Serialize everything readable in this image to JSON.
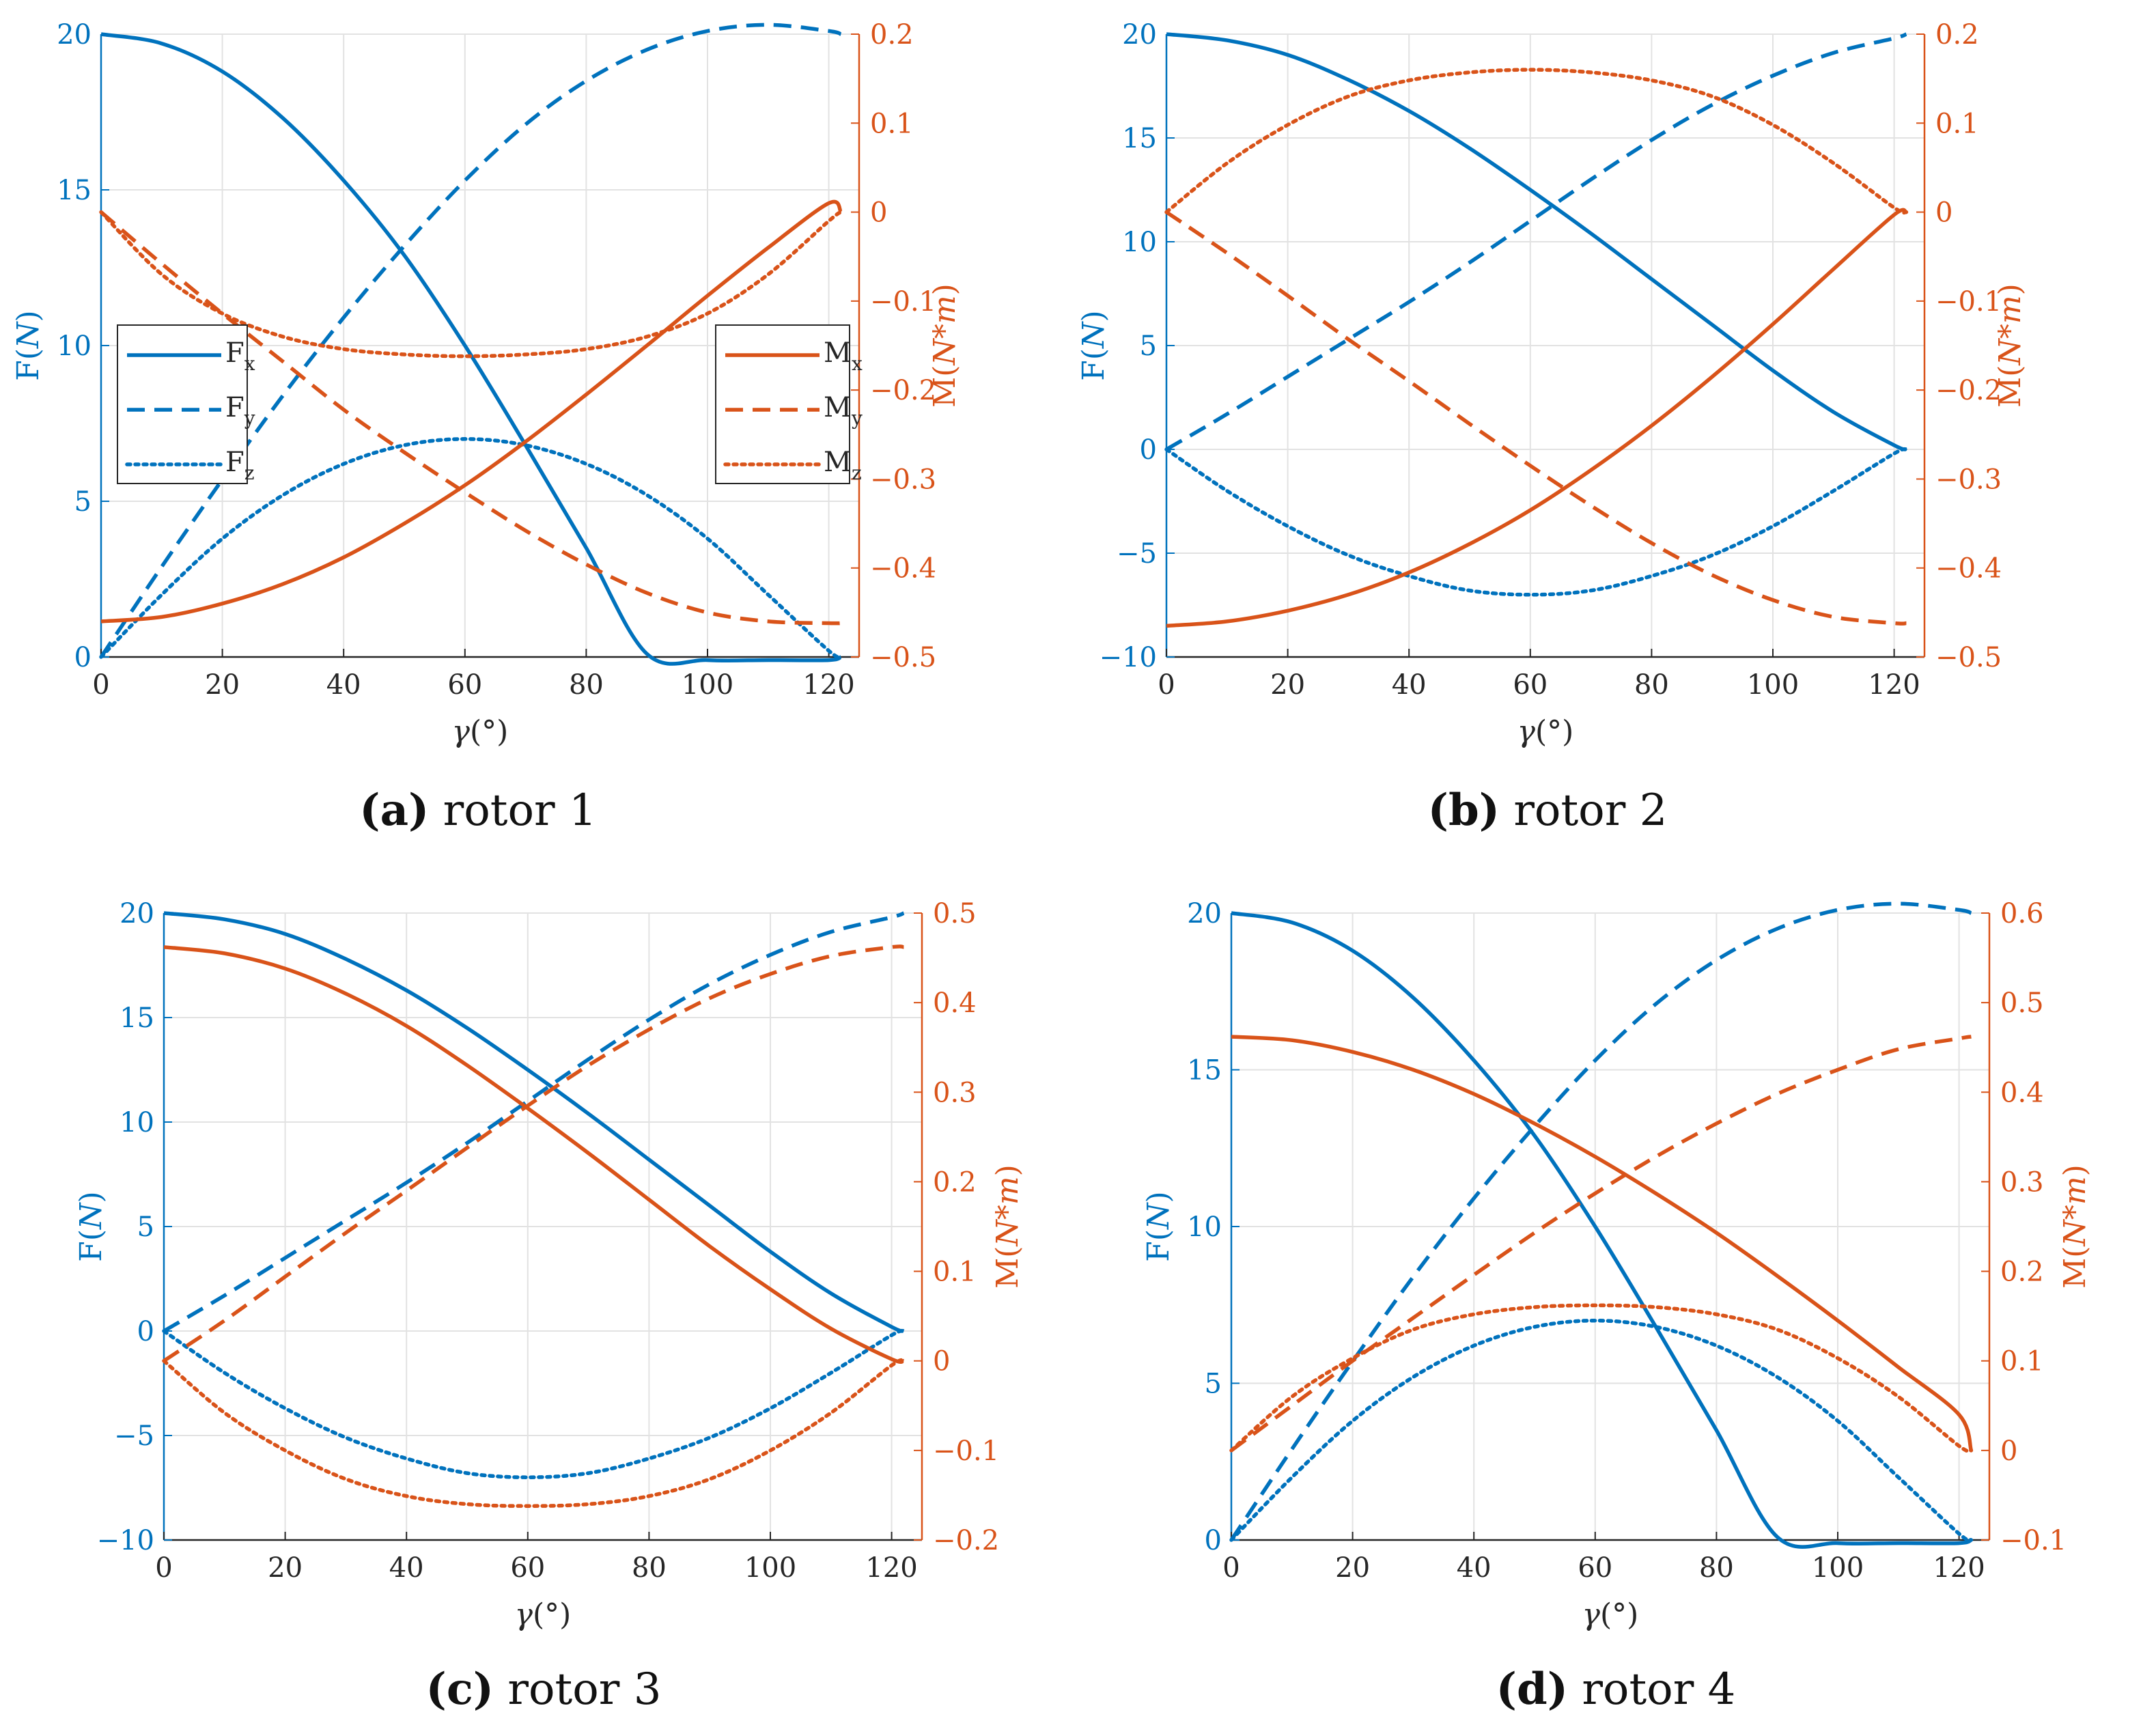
{
  "colors": {
    "force": "#0072BD",
    "moment": "#D95319",
    "grid": "#e2e2e2",
    "axis_bottom": "#262626"
  },
  "shared": {
    "xlabel": "γ(°)",
    "force_axis_label": "F(N)",
    "moment_axis_label": "M(N*m)",
    "xlim": [
      0,
      125
    ],
    "xticks": [
      0,
      20,
      40,
      60,
      80,
      100,
      120
    ]
  },
  "chart_data": [
    {
      "type": "line",
      "panel": "a",
      "caption_letter": "(a)",
      "caption_text": " rotor 1",
      "x": [
        0,
        10,
        20,
        30,
        40,
        50,
        60,
        70,
        80,
        90,
        100,
        110,
        120,
        122
      ],
      "ylim_left": [
        0,
        20
      ],
      "yticks_left": [
        0,
        5,
        10,
        15,
        20
      ],
      "ylim_right": [
        -0.5,
        0.2
      ],
      "yticks_right": [
        -0.5,
        -0.4,
        -0.3,
        -0.2,
        -0.1,
        0,
        0.1,
        0.2
      ],
      "yticklabels_right": [
        "−0.5",
        "−0.4",
        "−0.3",
        "−0.2",
        "−0.1",
        "0",
        "0.1",
        "0.2"
      ],
      "series": [
        {
          "name": "Fx",
          "axis": "left",
          "style": "solid",
          "values": [
            20,
            19.7,
            18.8,
            17.3,
            15.3,
            12.9,
            10.0,
            6.8,
            3.5,
            0.1,
            -0.1,
            -0.1,
            -0.1,
            0
          ]
        },
        {
          "name": "Fy",
          "axis": "left",
          "style": "dashed",
          "values": [
            0,
            2.9,
            5.7,
            8.4,
            10.9,
            13.2,
            15.3,
            17.1,
            18.5,
            19.5,
            20.1,
            20.3,
            20.1,
            20
          ]
        },
        {
          "name": "Fz",
          "axis": "left",
          "style": "dotted",
          "values": [
            0,
            2.0,
            3.8,
            5.2,
            6.2,
            6.8,
            7.0,
            6.8,
            6.2,
            5.2,
            3.8,
            2.0,
            0.2,
            0
          ]
        },
        {
          "name": "Mx",
          "axis": "right",
          "style": "solid",
          "values": [
            -0.46,
            -0.455,
            -0.44,
            -0.418,
            -0.388,
            -0.35,
            -0.307,
            -0.258,
            -0.205,
            -0.15,
            -0.094,
            -0.04,
            0.01,
            0
          ]
        },
        {
          "name": "My",
          "axis": "right",
          "style": "dashed",
          "values": [
            0,
            -0.058,
            -0.114,
            -0.168,
            -0.222,
            -0.27,
            -0.315,
            -0.358,
            -0.396,
            -0.428,
            -0.45,
            -0.46,
            -0.462,
            -0.462
          ]
        },
        {
          "name": "Mz",
          "axis": "right",
          "style": "dotted",
          "values": [
            0,
            -0.07,
            -0.114,
            -0.14,
            -0.154,
            -0.16,
            -0.162,
            -0.16,
            -0.154,
            -0.14,
            -0.114,
            -0.07,
            -0.01,
            0
          ]
        }
      ]
    },
    {
      "type": "line",
      "panel": "b",
      "caption_letter": "(b)",
      "caption_text": " rotor 2",
      "x": [
        0,
        10,
        20,
        30,
        40,
        50,
        60,
        70,
        80,
        90,
        100,
        110,
        120,
        122
      ],
      "ylim_left": [
        -10,
        20
      ],
      "yticks_left": [
        -10,
        -5,
        0,
        5,
        10,
        15,
        20
      ],
      "yticklabels_left": [
        "−10",
        "−5",
        "0",
        "5",
        "10",
        "15",
        "20"
      ],
      "ylim_right": [
        -0.5,
        0.2
      ],
      "yticks_right": [
        -0.5,
        -0.4,
        -0.3,
        -0.2,
        -0.1,
        0,
        0.1,
        0.2
      ],
      "yticklabels_right": [
        "−0.5",
        "−0.4",
        "−0.3",
        "−0.2",
        "−0.1",
        "0",
        "0.1",
        "0.2"
      ],
      "series": [
        {
          "name": "Fx",
          "axis": "left",
          "style": "solid",
          "values": [
            20,
            19.7,
            19.0,
            17.8,
            16.3,
            14.5,
            12.5,
            10.4,
            8.2,
            6.0,
            3.8,
            1.8,
            0.2,
            0
          ]
        },
        {
          "name": "Fy",
          "axis": "left",
          "style": "dashed",
          "values": [
            0,
            1.7,
            3.5,
            5.3,
            7.1,
            9.0,
            11.0,
            13.0,
            14.9,
            16.6,
            18.0,
            19.1,
            19.8,
            20
          ]
        },
        {
          "name": "Fz",
          "axis": "left",
          "style": "dotted",
          "values": [
            0,
            -2.0,
            -3.7,
            -5.1,
            -6.1,
            -6.8,
            -7.0,
            -6.8,
            -6.1,
            -5.1,
            -3.7,
            -2.0,
            -0.2,
            0
          ]
        },
        {
          "name": "Mx",
          "axis": "right",
          "style": "solid",
          "values": [
            -0.465,
            -0.46,
            -0.448,
            -0.43,
            -0.405,
            -0.373,
            -0.335,
            -0.29,
            -0.24,
            -0.185,
            -0.126,
            -0.064,
            -0.003,
            0
          ]
        },
        {
          "name": "My",
          "axis": "right",
          "style": "dashed",
          "values": [
            0,
            -0.046,
            -0.094,
            -0.143,
            -0.19,
            -0.238,
            -0.285,
            -0.33,
            -0.372,
            -0.408,
            -0.436,
            -0.455,
            -0.462,
            -0.462
          ]
        },
        {
          "name": "Mz",
          "axis": "right",
          "style": "dotted",
          "values": [
            0,
            0.055,
            0.098,
            0.13,
            0.148,
            0.157,
            0.16,
            0.157,
            0.148,
            0.13,
            0.098,
            0.055,
            0.005,
            0
          ]
        }
      ]
    },
    {
      "type": "line",
      "panel": "c",
      "caption_letter": "(c)",
      "caption_text": " rotor 3",
      "x": [
        0,
        10,
        20,
        30,
        40,
        50,
        60,
        70,
        80,
        90,
        100,
        110,
        120,
        122
      ],
      "ylim_left": [
        -10,
        20
      ],
      "yticks_left": [
        -10,
        -5,
        0,
        5,
        10,
        15,
        20
      ],
      "yticklabels_left": [
        "−10",
        "−5",
        "0",
        "5",
        "10",
        "15",
        "20"
      ],
      "ylim_right": [
        -0.2,
        0.5
      ],
      "yticks_right": [
        -0.2,
        -0.1,
        0,
        0.1,
        0.2,
        0.3,
        0.4,
        0.5
      ],
      "yticklabels_right": [
        "−0.2",
        "−0.1",
        "0",
        "0.1",
        "0.2",
        "0.3",
        "0.4",
        "0.5"
      ],
      "series": [
        {
          "name": "Fx",
          "axis": "left",
          "style": "solid",
          "values": [
            20,
            19.7,
            19.0,
            17.8,
            16.3,
            14.5,
            12.5,
            10.4,
            8.2,
            6.0,
            3.8,
            1.8,
            0.2,
            0
          ]
        },
        {
          "name": "Fy",
          "axis": "left",
          "style": "dashed",
          "values": [
            0,
            1.7,
            3.5,
            5.3,
            7.1,
            9.0,
            11.0,
            13.0,
            14.9,
            16.6,
            18.0,
            19.1,
            19.8,
            20
          ]
        },
        {
          "name": "Fz",
          "axis": "left",
          "style": "dotted",
          "values": [
            0,
            -2.0,
            -3.7,
            -5.1,
            -6.1,
            -6.8,
            -7.0,
            -6.8,
            -6.1,
            -5.1,
            -3.7,
            -2.0,
            -0.2,
            0
          ]
        },
        {
          "name": "Mx",
          "axis": "right",
          "style": "solid",
          "values": [
            0.462,
            0.455,
            0.438,
            0.41,
            0.374,
            0.33,
            0.282,
            0.232,
            0.18,
            0.128,
            0.08,
            0.036,
            0.002,
            0
          ]
        },
        {
          "name": "My",
          "axis": "right",
          "style": "dashed",
          "values": [
            0,
            0.045,
            0.094,
            0.143,
            0.19,
            0.238,
            0.285,
            0.33,
            0.37,
            0.405,
            0.432,
            0.452,
            0.462,
            0.462
          ]
        },
        {
          "name": "Mz",
          "axis": "right",
          "style": "dotted",
          "values": [
            0,
            -0.058,
            -0.1,
            -0.132,
            -0.151,
            -0.16,
            -0.162,
            -0.16,
            -0.151,
            -0.132,
            -0.1,
            -0.058,
            -0.005,
            0
          ]
        }
      ]
    },
    {
      "type": "line",
      "panel": "d",
      "caption_letter": "(d)",
      "caption_text": " rotor 4",
      "x": [
        0,
        10,
        20,
        30,
        40,
        50,
        60,
        70,
        80,
        90,
        100,
        110,
        120,
        122
      ],
      "ylim_left": [
        0,
        20
      ],
      "yticks_left": [
        0,
        5,
        10,
        15,
        20
      ],
      "ylim_right": [
        -0.1,
        0.6
      ],
      "yticks_right": [
        -0.1,
        0,
        0.1,
        0.2,
        0.3,
        0.4,
        0.5,
        0.6
      ],
      "yticklabels_right": [
        "−0.1",
        "0",
        "0.1",
        "0.2",
        "0.3",
        "0.4",
        "0.5",
        "0.6"
      ],
      "series": [
        {
          "name": "Fx",
          "axis": "left",
          "style": "solid",
          "values": [
            20,
            19.7,
            18.8,
            17.3,
            15.3,
            12.9,
            10.0,
            6.8,
            3.5,
            0.1,
            -0.1,
            -0.1,
            -0.1,
            0
          ]
        },
        {
          "name": "Fy",
          "axis": "left",
          "style": "dashed",
          "values": [
            0,
            2.9,
            5.7,
            8.4,
            10.9,
            13.2,
            15.3,
            17.1,
            18.5,
            19.5,
            20.1,
            20.3,
            20.1,
            20
          ]
        },
        {
          "name": "Fz",
          "axis": "left",
          "style": "dotted",
          "values": [
            0,
            2.0,
            3.8,
            5.2,
            6.2,
            6.8,
            7.0,
            6.8,
            6.2,
            5.2,
            3.8,
            2.0,
            0.2,
            0
          ]
        },
        {
          "name": "Mx",
          "axis": "right",
          "style": "solid",
          "values": [
            0.462,
            0.458,
            0.445,
            0.425,
            0.398,
            0.365,
            0.328,
            0.287,
            0.243,
            0.195,
            0.145,
            0.093,
            0.04,
            0
          ]
        },
        {
          "name": "My",
          "axis": "right",
          "style": "dashed",
          "values": [
            0,
            0.05,
            0.1,
            0.148,
            0.196,
            0.243,
            0.287,
            0.328,
            0.365,
            0.398,
            0.425,
            0.448,
            0.46,
            0.462
          ]
        },
        {
          "name": "Mz",
          "axis": "right",
          "style": "dotted",
          "values": [
            0,
            0.06,
            0.103,
            0.135,
            0.152,
            0.16,
            0.162,
            0.16,
            0.152,
            0.135,
            0.103,
            0.06,
            0.005,
            0
          ]
        }
      ]
    }
  ],
  "legend_left": [
    {
      "base": "F",
      "sub": "x",
      "style": "solid"
    },
    {
      "base": "F",
      "sub": "y",
      "style": "dashed"
    },
    {
      "base": "F",
      "sub": "z",
      "style": "dotted"
    }
  ],
  "legend_right": [
    {
      "base": "M",
      "sub": "x",
      "style": "solid"
    },
    {
      "base": "M",
      "sub": "y",
      "style": "dashed"
    },
    {
      "base": "M",
      "sub": "z",
      "style": "dotted"
    }
  ]
}
